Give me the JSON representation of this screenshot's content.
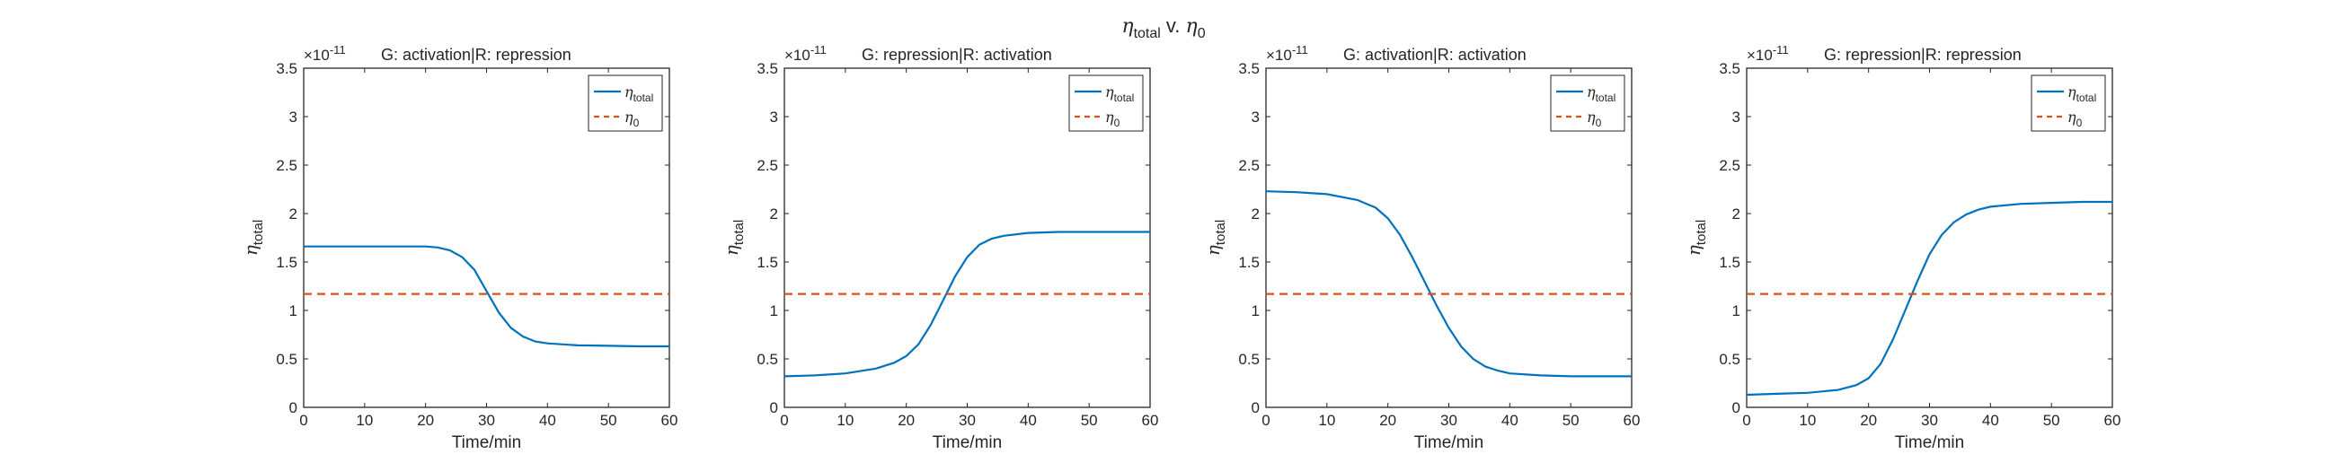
{
  "figure": {
    "suptitle": {
      "symbol": "η",
      "sub": "total",
      "mid": " v. ",
      "symbol2": "η",
      "sub2": "0"
    }
  },
  "colors": {
    "total_line": "#0072BD",
    "baseline_line": "#D95319",
    "axis": "#262626"
  },
  "chart_data": [
    {
      "type": "line",
      "title": "G: activation|R: repression",
      "xlabel": "Time/min",
      "ylabel": {
        "symbol": "η",
        "sub": "total"
      },
      "exponent": "×10",
      "exponent_power": "-11",
      "xlim": [
        0,
        60
      ],
      "ylim": [
        0,
        3.5
      ],
      "xticks": [
        "0",
        "10",
        "20",
        "30",
        "40",
        "50",
        "60"
      ],
      "yticks": [
        "0",
        "0.5",
        "1",
        "1.5",
        "2",
        "2.5",
        "3",
        "3.5"
      ],
      "legend_position": "top-right",
      "x": [
        0,
        5,
        10,
        15,
        20,
        22,
        24,
        26,
        28,
        30,
        32,
        34,
        36,
        38,
        40,
        45,
        50,
        55,
        60
      ],
      "series": [
        {
          "name": {
            "symbol": "η",
            "sub": "total"
          },
          "style": "solid",
          "values": [
            1.66,
            1.66,
            1.66,
            1.66,
            1.66,
            1.65,
            1.62,
            1.55,
            1.42,
            1.2,
            0.98,
            0.82,
            0.73,
            0.68,
            0.66,
            0.64,
            0.635,
            0.63,
            0.63
          ]
        },
        {
          "name": {
            "symbol": "η",
            "sub": "0"
          },
          "style": "dashed",
          "values": [
            1.17,
            1.17,
            1.17,
            1.17,
            1.17,
            1.17,
            1.17,
            1.17,
            1.17,
            1.17,
            1.17,
            1.17,
            1.17,
            1.17,
            1.17,
            1.17,
            1.17,
            1.17,
            1.17
          ]
        }
      ]
    },
    {
      "type": "line",
      "title": "G: repression|R: activation",
      "xlabel": "Time/min",
      "ylabel": {
        "symbol": "η",
        "sub": "total"
      },
      "exponent": "×10",
      "exponent_power": "-11",
      "xlim": [
        0,
        60
      ],
      "ylim": [
        0,
        3.5
      ],
      "xticks": [
        "0",
        "10",
        "20",
        "30",
        "40",
        "50",
        "60"
      ],
      "yticks": [
        "0",
        "0.5",
        "1",
        "1.5",
        "2",
        "2.5",
        "3",
        "3.5"
      ],
      "legend_position": "top-right",
      "x": [
        0,
        5,
        10,
        15,
        18,
        20,
        22,
        24,
        26,
        28,
        30,
        32,
        34,
        36,
        40,
        45,
        50,
        55,
        60
      ],
      "series": [
        {
          "name": {
            "symbol": "η",
            "sub": "total"
          },
          "style": "solid",
          "values": [
            0.32,
            0.33,
            0.35,
            0.4,
            0.46,
            0.53,
            0.65,
            0.85,
            1.1,
            1.35,
            1.55,
            1.68,
            1.74,
            1.77,
            1.8,
            1.81,
            1.81,
            1.81,
            1.81
          ]
        },
        {
          "name": {
            "symbol": "η",
            "sub": "0"
          },
          "style": "dashed",
          "values": [
            1.17,
            1.17,
            1.17,
            1.17,
            1.17,
            1.17,
            1.17,
            1.17,
            1.17,
            1.17,
            1.17,
            1.17,
            1.17,
            1.17,
            1.17,
            1.17,
            1.17,
            1.17,
            1.17
          ]
        }
      ]
    },
    {
      "type": "line",
      "title": "G: activation|R: activation",
      "xlabel": "Time/min",
      "ylabel": {
        "symbol": "η",
        "sub": "total"
      },
      "exponent": "×10",
      "exponent_power": "-11",
      "xlim": [
        0,
        60
      ],
      "ylim": [
        0,
        3.5
      ],
      "xticks": [
        "0",
        "10",
        "20",
        "30",
        "40",
        "50",
        "60"
      ],
      "yticks": [
        "0",
        "0.5",
        "1",
        "1.5",
        "2",
        "2.5",
        "3",
        "3.5"
      ],
      "legend_position": "top-right",
      "x": [
        0,
        5,
        10,
        15,
        18,
        20,
        22,
        24,
        26,
        28,
        30,
        32,
        34,
        36,
        38,
        40,
        45,
        50,
        55,
        60
      ],
      "series": [
        {
          "name": {
            "symbol": "η",
            "sub": "total"
          },
          "style": "solid",
          "values": [
            2.23,
            2.22,
            2.2,
            2.14,
            2.06,
            1.95,
            1.78,
            1.55,
            1.3,
            1.05,
            0.82,
            0.63,
            0.5,
            0.42,
            0.38,
            0.35,
            0.33,
            0.32,
            0.32,
            0.32
          ]
        },
        {
          "name": {
            "symbol": "η",
            "sub": "0"
          },
          "style": "dashed",
          "values": [
            1.17,
            1.17,
            1.17,
            1.17,
            1.17,
            1.17,
            1.17,
            1.17,
            1.17,
            1.17,
            1.17,
            1.17,
            1.17,
            1.17,
            1.17,
            1.17,
            1.17,
            1.17,
            1.17,
            1.17
          ]
        }
      ]
    },
    {
      "type": "line",
      "title": "G: repression|R: repression",
      "xlabel": "Time/min",
      "ylabel": {
        "symbol": "η",
        "sub": "total"
      },
      "exponent": "×10",
      "exponent_power": "-11",
      "xlim": [
        0,
        60
      ],
      "ylim": [
        0,
        3.5
      ],
      "xticks": [
        "0",
        "10",
        "20",
        "30",
        "40",
        "50",
        "60"
      ],
      "yticks": [
        "0",
        "0.5",
        "1",
        "1.5",
        "2",
        "2.5",
        "3",
        "3.5"
      ],
      "legend_position": "top-right",
      "x": [
        0,
        5,
        10,
        15,
        18,
        20,
        22,
        24,
        26,
        28,
        30,
        32,
        34,
        36,
        38,
        40,
        45,
        50,
        55,
        60
      ],
      "series": [
        {
          "name": {
            "symbol": "η",
            "sub": "total"
          },
          "style": "solid",
          "values": [
            0.13,
            0.14,
            0.15,
            0.18,
            0.23,
            0.3,
            0.45,
            0.7,
            1.0,
            1.3,
            1.58,
            1.78,
            1.91,
            1.99,
            2.04,
            2.07,
            2.1,
            2.11,
            2.12,
            2.12
          ]
        },
        {
          "name": {
            "symbol": "η",
            "sub": "0"
          },
          "style": "dashed",
          "values": [
            1.17,
            1.17,
            1.17,
            1.17,
            1.17,
            1.17,
            1.17,
            1.17,
            1.17,
            1.17,
            1.17,
            1.17,
            1.17,
            1.17,
            1.17,
            1.17,
            1.17,
            1.17,
            1.17,
            1.17
          ]
        }
      ]
    }
  ]
}
